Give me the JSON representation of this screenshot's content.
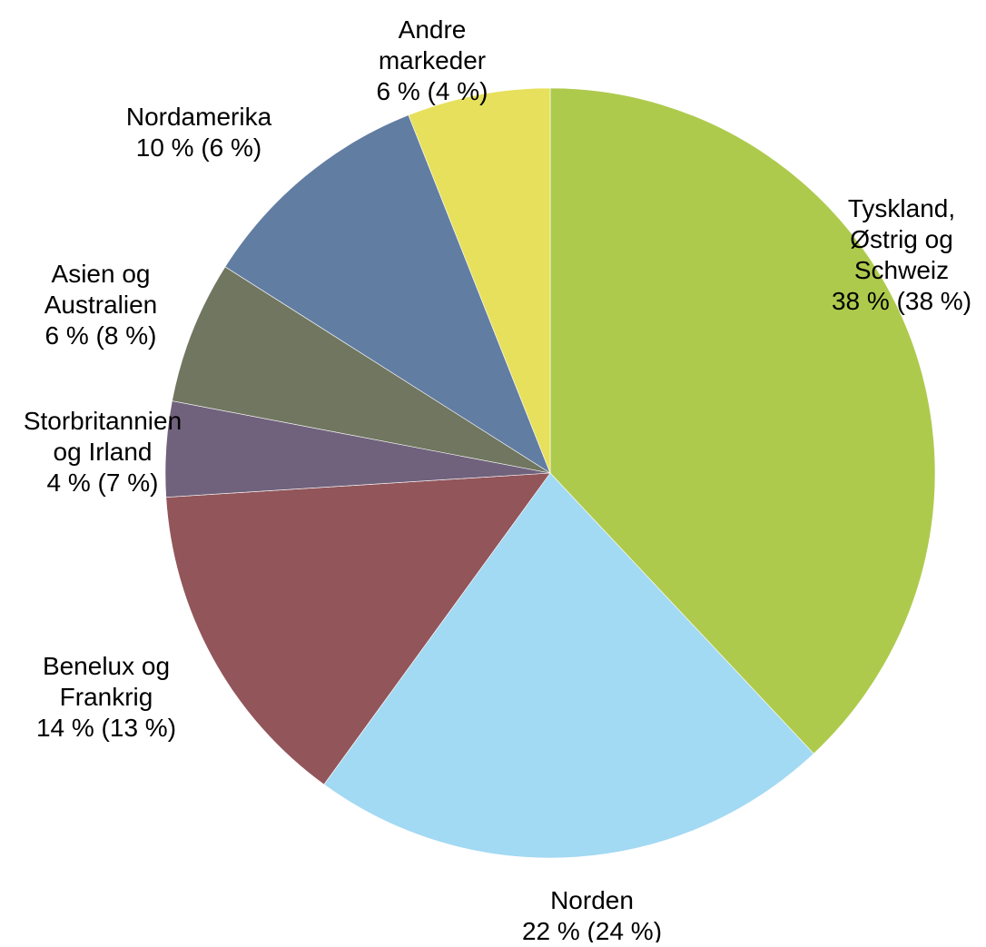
{
  "chart_data": {
    "type": "pie",
    "title": "",
    "start_angle_deg": 0,
    "direction": "clockwise",
    "slices": [
      {
        "label_lines": [
          "Tyskland,",
          "Østrig og",
          "Schweiz",
          "38 % (38 %)"
        ],
        "value": 38,
        "previous_value": 38,
        "color": "#AECA4D"
      },
      {
        "label_lines": [
          "Norden",
          "22 % (24 %)"
        ],
        "value": 22,
        "previous_value": 24,
        "color": "#A2D9F3"
      },
      {
        "label_lines": [
          "Benelux og",
          "Frankrig",
          "14 % (13 %)"
        ],
        "value": 14,
        "previous_value": 13,
        "color": "#92555A"
      },
      {
        "label_lines": [
          "Storbritannien",
          "og Irland",
          "4 % (7 %)"
        ],
        "value": 4,
        "previous_value": 7,
        "color": "#70627C"
      },
      {
        "label_lines": [
          "Asien og",
          "Australien",
          "6 % (8 %)"
        ],
        "value": 6,
        "previous_value": 8,
        "color": "#707660"
      },
      {
        "label_lines": [
          "Nordamerika",
          "10 % (6 %)"
        ],
        "value": 10,
        "previous_value": 6,
        "color": "#627DA2"
      },
      {
        "label_lines": [
          "Andre",
          "markeder",
          "6 % (4 %)"
        ],
        "value": 6,
        "previous_value": 4,
        "color": "#E6E05C"
      }
    ]
  }
}
